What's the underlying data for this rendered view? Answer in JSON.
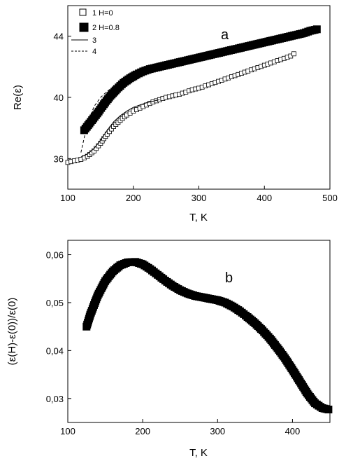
{
  "chart_data": [
    {
      "type": "scatter",
      "panel_label": "a",
      "xlabel": "T, K",
      "ylabel": "Re(ε)",
      "xlim": [
        100,
        500
      ],
      "ylim": [
        34,
        46
      ],
      "x_ticks": [
        100,
        200,
        300,
        400,
        500
      ],
      "y_ticks": [
        36,
        40,
        44
      ],
      "x_tick_labels": [
        "100",
        "200",
        "300",
        "400",
        "500"
      ],
      "y_tick_labels": [
        "36",
        "40",
        "44"
      ],
      "legend": {
        "placement": "top-left",
        "entries": [
          {
            "label": "1  H=0",
            "marker": "open-square"
          },
          {
            "label": "2  H=0.8",
            "marker": "filled-square"
          },
          {
            "label": "3",
            "marker": "solid-line"
          },
          {
            "label": "4",
            "marker": "dashed-line"
          }
        ]
      },
      "series": [
        {
          "marker": "open-square",
          "x": [
            100,
            120,
            130,
            140,
            150,
            160,
            170,
            180,
            190,
            200,
            210,
            220,
            230,
            240,
            250,
            260,
            270,
            280,
            290,
            300,
            310,
            320,
            330,
            340,
            350,
            360,
            370,
            380,
            390,
            400,
            410,
            420,
            430,
            440,
            445
          ],
          "y": [
            35.75,
            35.95,
            36.15,
            36.5,
            37.0,
            37.6,
            38.1,
            38.5,
            38.85,
            39.1,
            39.3,
            39.5,
            39.7,
            39.85,
            40.0,
            40.1,
            40.2,
            40.35,
            40.5,
            40.6,
            40.75,
            40.9,
            41.05,
            41.2,
            41.35,
            41.5,
            41.65,
            41.8,
            41.95,
            42.1,
            42.25,
            42.4,
            42.55,
            42.7,
            42.85
          ]
        },
        {
          "marker": "filled-square",
          "x": [
            125,
            135,
            145,
            155,
            165,
            175,
            185,
            195,
            205,
            215,
            225,
            235,
            250,
            265,
            280,
            295,
            310,
            325,
            340,
            355,
            370,
            385,
            400,
            415,
            430,
            445,
            460,
            470,
            480
          ],
          "y": [
            37.85,
            38.4,
            38.95,
            39.55,
            40.1,
            40.55,
            40.95,
            41.25,
            41.5,
            41.7,
            41.85,
            41.95,
            42.1,
            42.25,
            42.4,
            42.55,
            42.7,
            42.85,
            43.0,
            43.15,
            43.3,
            43.45,
            43.6,
            43.75,
            43.9,
            44.05,
            44.2,
            44.35,
            44.45
          ]
        },
        {
          "marker": "solid-line",
          "x": [
            120,
            130,
            140,
            150,
            160,
            170,
            180,
            190,
            200,
            210,
            220,
            230,
            240
          ],
          "y": [
            36.1,
            36.3,
            36.65,
            37.2,
            37.85,
            38.4,
            38.8,
            39.1,
            39.35,
            39.5,
            39.65,
            39.75,
            39.85
          ]
        },
        {
          "marker": "dashed-line",
          "x": [
            120,
            130,
            140,
            150,
            160,
            170,
            180,
            190,
            200,
            210,
            220,
            230,
            240
          ],
          "y": [
            36.4,
            38.3,
            39.4,
            40.0,
            40.4,
            40.7,
            40.95,
            41.2,
            41.4,
            41.55,
            41.65,
            41.75,
            41.8
          ]
        }
      ]
    },
    {
      "type": "scatter",
      "panel_label": "b",
      "xlabel": "T, K",
      "ylabel": "(ε(H)-ε(0))/ε(0)",
      "xlim": [
        100,
        450
      ],
      "ylim": [
        0.025,
        0.063
      ],
      "x_ticks": [
        100,
        200,
        300,
        400
      ],
      "y_ticks": [
        0.03,
        0.04,
        0.05,
        0.06
      ],
      "x_tick_labels": [
        "100",
        "200",
        "300",
        "400"
      ],
      "y_tick_labels": [
        "0,03",
        "0,04",
        "0,05",
        "0,06"
      ],
      "series": [
        {
          "marker": "filled-square",
          "x": [
            125,
            130,
            140,
            150,
            160,
            170,
            180,
            190,
            200,
            210,
            220,
            230,
            240,
            250,
            260,
            270,
            280,
            290,
            300,
            310,
            320,
            330,
            340,
            350,
            360,
            370,
            380,
            390,
            400,
            410,
            420,
            430,
            440,
            448
          ],
          "y": [
            0.045,
            0.0475,
            0.0515,
            0.0545,
            0.0565,
            0.0578,
            0.0584,
            0.0585,
            0.058,
            0.057,
            0.0558,
            0.0546,
            0.0535,
            0.0526,
            0.0519,
            0.0514,
            0.0511,
            0.0508,
            0.0505,
            0.05,
            0.0492,
            0.0482,
            0.047,
            0.0457,
            0.0442,
            0.0425,
            0.0405,
            0.0384,
            0.036,
            0.0335,
            0.031,
            0.029,
            0.028,
            0.0277
          ]
        }
      ]
    }
  ]
}
